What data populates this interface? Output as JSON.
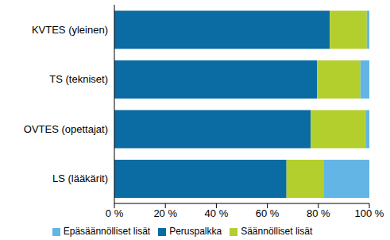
{
  "chart_data": {
    "type": "bar",
    "orientation": "horizontal",
    "stacked": true,
    "categories": [
      "KVTES (yleinen)",
      "TS (tekniset)",
      "OVTES (opettajat)",
      "LS (lääkärit)"
    ],
    "series": [
      {
        "name": "Peruspalkka",
        "color": "#0b6ba3",
        "values": [
          84.5,
          79.5,
          77,
          67.5
        ]
      },
      {
        "name": "Säännölliset lisät",
        "color": "#b3cf2d",
        "values": [
          14.5,
          17,
          21.5,
          14.5
        ]
      },
      {
        "name": "Epäsäännölliset lisät",
        "color": "#62b5e5",
        "values": [
          1,
          3.5,
          1.5,
          18
        ]
      }
    ],
    "xlim": [
      0,
      100
    ],
    "xticks": [
      {
        "value": 0,
        "label": "0 %"
      },
      {
        "value": 20,
        "label": "20 %"
      },
      {
        "value": 40,
        "label": "40 %"
      },
      {
        "value": 60,
        "label": "60 %"
      },
      {
        "value": 80,
        "label": "80 %"
      },
      {
        "value": 100,
        "label": "100 %"
      }
    ],
    "legend": "bottom",
    "grid": false
  }
}
